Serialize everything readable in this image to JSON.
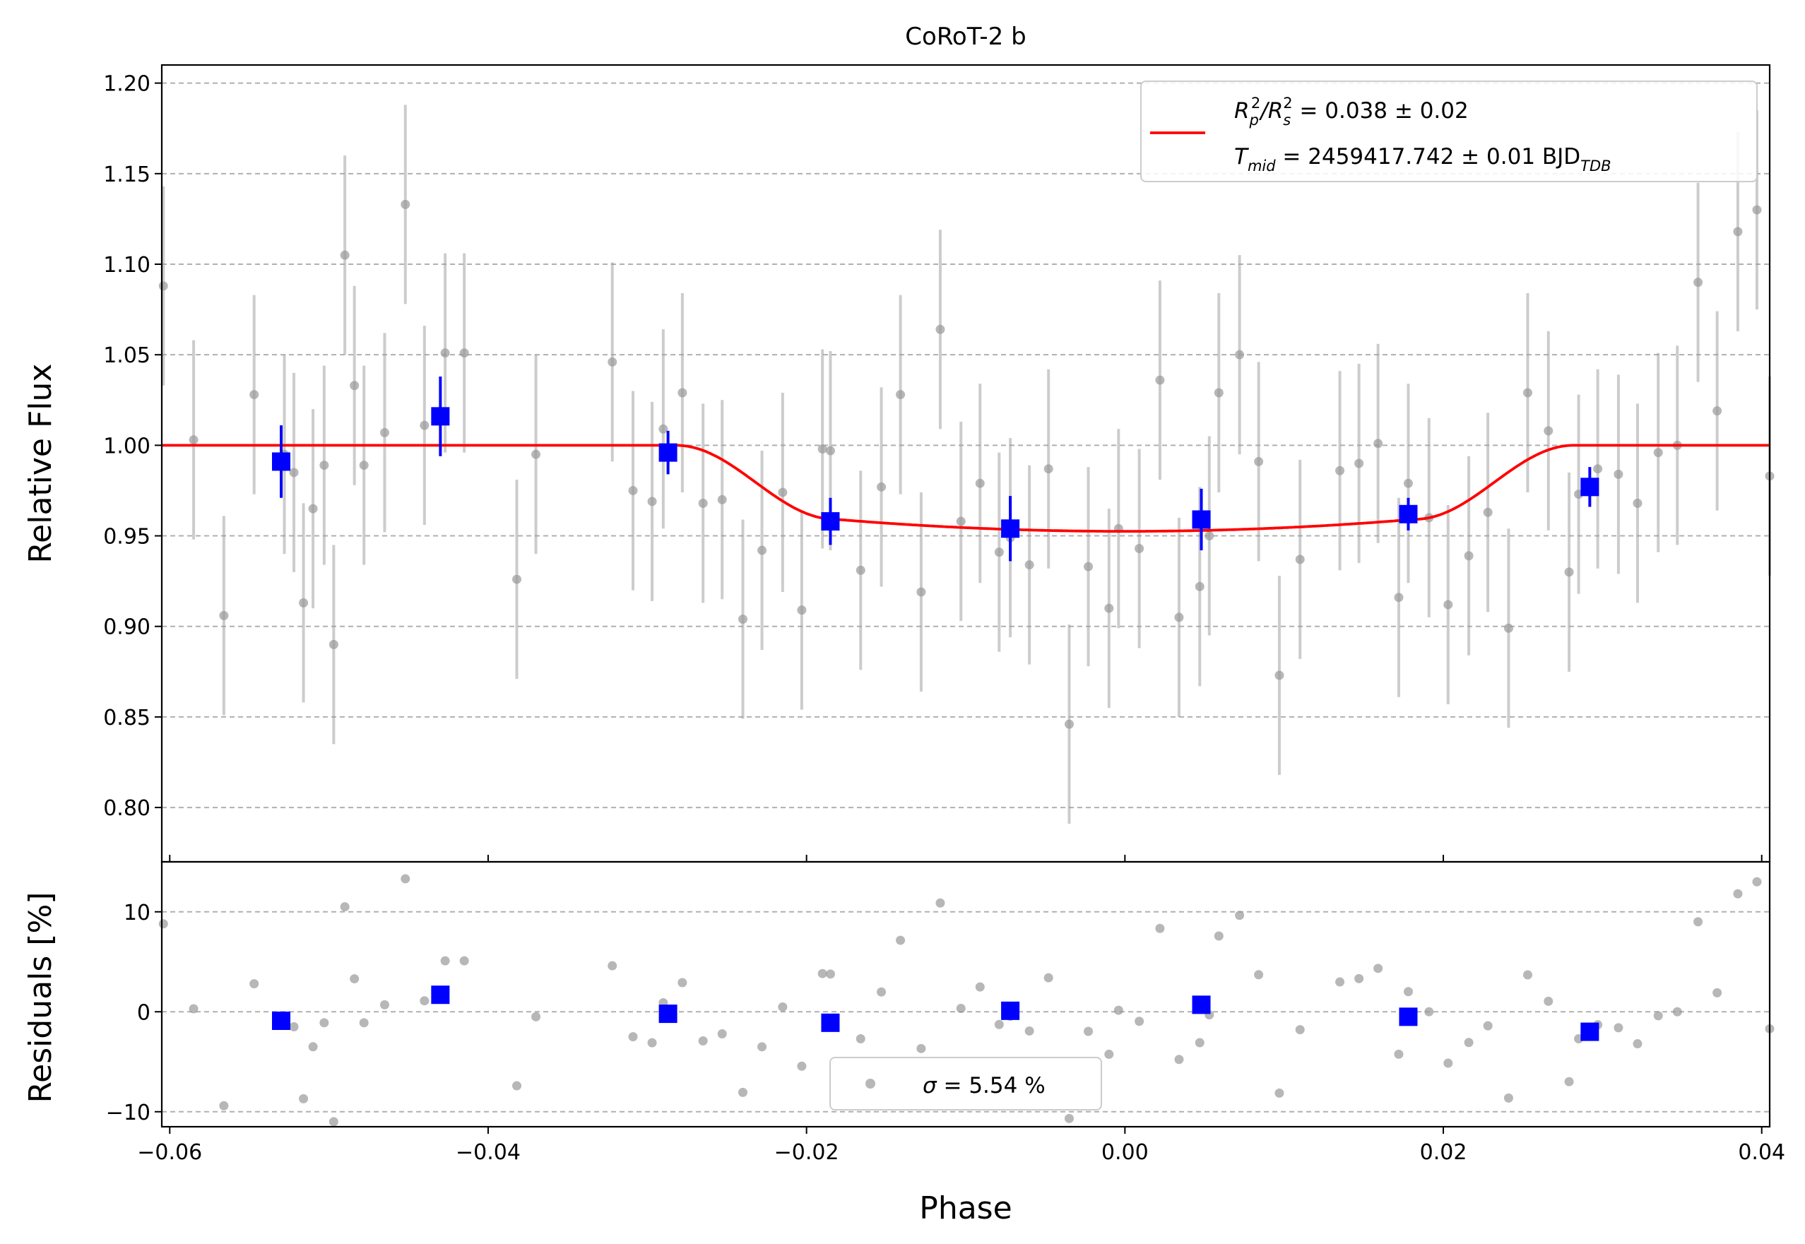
{
  "chart_data": [
    {
      "type": "scatter",
      "title": "CoRoT-2 b",
      "xlabel": "",
      "ylabel": "Relative Flux",
      "xlim": [
        -0.0605,
        0.0405
      ],
      "ylim": [
        0.77,
        1.21
      ],
      "grid": "y-dashed",
      "xticks": [
        -0.06,
        -0.04,
        -0.02,
        0.0,
        0.02,
        0.04
      ],
      "yticks": [
        0.8,
        0.85,
        0.9,
        0.95,
        1.0,
        1.05,
        1.1,
        1.15,
        1.2
      ],
      "ytick_labels": [
        "0.80",
        "0.85",
        "0.90",
        "0.95",
        "1.00",
        "1.05",
        "1.10",
        "1.15",
        "1.20"
      ],
      "legend": {
        "placement": "upper right",
        "line1_main": "R",
        "line1_sub1": "p",
        "line1_sup1": "2",
        "line1_slash": "/R",
        "line1_sub2": "s",
        "line1_sup2": "2",
        "line1_value": " = 0.038 ± 0.02",
        "line2_main": "T",
        "line2_sub": "mid",
        "line2_value": " = 2459417.742 ± 0.01 BJD",
        "line2_unit_sub": "TDB",
        "color": "#ff0000"
      },
      "model": {
        "color": "#ff0000",
        "depth": 0.0475,
        "t1": -0.0282,
        "t2": -0.0182,
        "t3": 0.0182,
        "t4": 0.0282
      },
      "raw_errorbar": 0.055,
      "raw": {
        "color": "#999999",
        "x": [
          -0.0604,
          -0.0585,
          -0.0566,
          -0.0547,
          -0.0528,
          -0.0522,
          -0.0516,
          -0.051,
          -0.0503,
          -0.0497,
          -0.049,
          -0.0484,
          -0.0478,
          -0.0465,
          -0.0452,
          -0.044,
          -0.0427,
          -0.0415,
          -0.0382,
          -0.037,
          -0.0322,
          -0.0309,
          -0.0297,
          -0.029,
          -0.0278,
          -0.0265,
          -0.0253,
          -0.024,
          -0.0228,
          -0.0215,
          -0.0203,
          -0.019,
          -0.0185,
          -0.0166,
          -0.0153,
          -0.0141,
          -0.0128,
          -0.0116,
          -0.0103,
          -0.0091,
          -0.0079,
          -0.0072,
          -0.006,
          -0.0048,
          -0.0035,
          -0.0023,
          -0.001,
          -0.0004,
          0.0009,
          0.0022,
          0.0034,
          0.0047,
          0.0053,
          0.0059,
          0.0072,
          0.0084,
          0.0097,
          0.011,
          0.0135,
          0.0147,
          0.0159,
          0.0172,
          0.0178,
          0.0191,
          0.0203,
          0.0216,
          0.0228,
          0.0241,
          0.0253,
          0.0266,
          0.0279,
          0.0285,
          0.0297,
          0.031,
          0.0322,
          0.0335,
          0.0347,
          0.036,
          0.0372,
          0.0385,
          0.0397,
          0.0405
        ],
        "y": [
          1.088,
          1.003,
          0.906,
          1.028,
          0.995,
          0.985,
          0.913,
          0.965,
          0.989,
          0.89,
          1.105,
          1.033,
          0.989,
          1.007,
          1.133,
          1.011,
          1.051,
          1.051,
          0.926,
          0.995,
          1.046,
          0.975,
          0.969,
          1.009,
          1.029,
          0.968,
          0.97,
          0.904,
          0.942,
          0.974,
          0.909,
          0.998,
          0.997,
          0.931,
          0.977,
          1.028,
          0.919,
          1.064,
          0.958,
          0.979,
          0.941,
          0.949,
          0.934,
          0.987,
          0.846,
          0.933,
          0.91,
          0.954,
          0.943,
          1.036,
          0.905,
          0.922,
          0.95,
          1.029,
          1.05,
          0.991,
          0.873,
          0.937,
          0.986,
          0.99,
          1.001,
          0.916,
          0.979,
          0.96,
          0.912,
          0.939,
          0.963,
          0.899,
          1.029,
          1.008,
          0.93,
          0.973,
          0.987,
          0.984,
          0.968,
          0.996,
          1.0,
          1.09,
          1.019,
          1.118,
          1.13,
          0.983
        ]
      },
      "binned": {
        "color": "#0000ff",
        "x": [
          -0.053,
          -0.043,
          -0.0287,
          -0.0185,
          -0.0072,
          0.0048,
          0.0178,
          0.0292
        ],
        "y": [
          0.991,
          1.016,
          0.996,
          0.958,
          0.954,
          0.959,
          0.962,
          0.977
        ],
        "err": [
          0.02,
          0.022,
          0.012,
          0.013,
          0.018,
          0.017,
          0.009,
          0.011
        ]
      }
    },
    {
      "type": "scatter",
      "title": "",
      "xlabel": "Phase",
      "ylabel": "Residuals [%]",
      "xlim": [
        -0.0605,
        0.0405
      ],
      "ylim": [
        -11.5,
        15.0
      ],
      "grid": "y-dashed",
      "xticks": [
        -0.06,
        -0.04,
        -0.02,
        0.0,
        0.02,
        0.04
      ],
      "xtick_labels": [
        "−0.06",
        "−0.04",
        "−0.02",
        "0.00",
        "0.02",
        "0.04"
      ],
      "yticks": [
        -10,
        0,
        10
      ],
      "ytick_labels": [
        "−10",
        "0",
        "10"
      ],
      "legend": {
        "placement": "lower center",
        "label_sym": "σ",
        "label_value": " = 5.54 %"
      },
      "binned_residuals": [
        -0.9,
        1.7,
        -0.2,
        -1.1,
        0.1,
        0.7,
        -0.5,
        -2.0
      ]
    }
  ]
}
